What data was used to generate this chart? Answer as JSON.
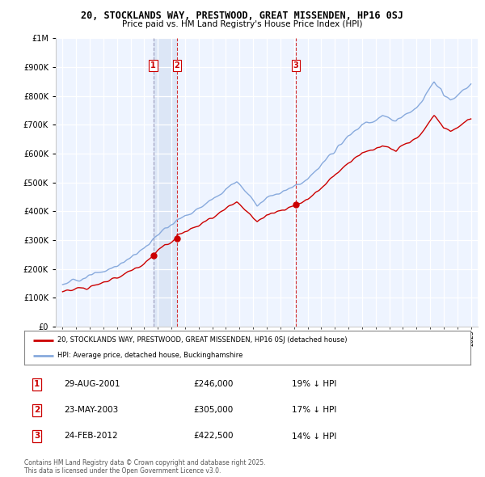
{
  "title1": "20, STOCKLANDS WAY, PRESTWOOD, GREAT MISSENDEN, HP16 0SJ",
  "title2": "Price paid vs. HM Land Registry's House Price Index (HPI)",
  "legend_line1": "20, STOCKLANDS WAY, PRESTWOOD, GREAT MISSENDEN, HP16 0SJ (detached house)",
  "legend_line2": "HPI: Average price, detached house, Buckinghamshire",
  "footer": "Contains HM Land Registry data © Crown copyright and database right 2025.\nThis data is licensed under the Open Government Licence v3.0.",
  "transactions": [
    {
      "num": 1,
      "date": "29-AUG-2001",
      "price": 246000,
      "pct": "19% ↓ HPI",
      "year": 2001.66
    },
    {
      "num": 2,
      "date": "23-MAY-2003",
      "price": 305000,
      "pct": "17% ↓ HPI",
      "year": 2003.39
    },
    {
      "num": 3,
      "date": "24-FEB-2012",
      "price": 422500,
      "pct": "14% ↓ HPI",
      "year": 2012.15
    }
  ],
  "price_color": "#cc0000",
  "hpi_color": "#88aadd",
  "hpi_fill_color": "#ddeeff",
  "vline_color1": "#aaaacc",
  "vline_color2": "#cc0000",
  "background_color": "#ffffff",
  "plot_bg_color": "#eef4ff",
  "ylim": [
    0,
    1000000
  ],
  "xlim_start": 1994.5,
  "xlim_end": 2025.5
}
